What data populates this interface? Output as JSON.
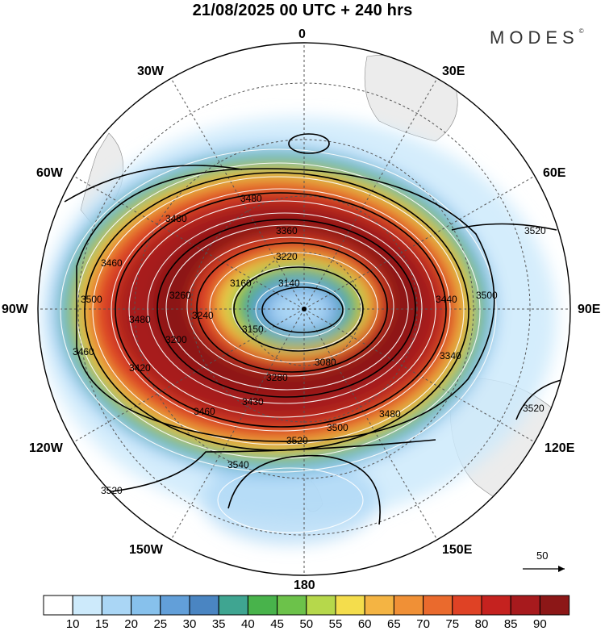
{
  "title": "21/08/2025  00 UTC  + 240 hrs",
  "brand": "MODES",
  "brand_mark": "©",
  "longitude_labels": {
    "n0": "0",
    "n30w": "30W",
    "n30e": "30E",
    "n60w": "60W",
    "n60e": "60E",
    "n90w": "90W",
    "n90e": "90E",
    "n120w": "120W",
    "n120e": "120E",
    "n150w": "150W",
    "n150e": "150E",
    "n180": "180"
  },
  "contour_labels": [
    "3480",
    "3480",
    "3460",
    "3460",
    "3500",
    "3480",
    "3360",
    "3220",
    "3160",
    "3140",
    "3240",
    "3260",
    "3200",
    "3280",
    "3080",
    "3150",
    "3420",
    "3340",
    "3460",
    "3480",
    "3500",
    "3520",
    "3500",
    "3520",
    "3540",
    "3520",
    "3520",
    "3430",
    "3440"
  ],
  "reference_vector": {
    "label": "50"
  },
  "colorbar": {
    "levels": [
      "10",
      "15",
      "20",
      "25",
      "30",
      "35",
      "40",
      "45",
      "50",
      "55",
      "60",
      "65",
      "70",
      "75",
      "80",
      "85",
      "90"
    ],
    "colors": [
      "#ffffff",
      "#cdeafb",
      "#aad6f5",
      "#87c1ec",
      "#629fd9",
      "#4a85c2",
      "#3fa591",
      "#48b34b",
      "#6cc24a",
      "#b6d84b",
      "#f4dd4c",
      "#f4b443",
      "#f09036",
      "#ea6a2d",
      "#df4225",
      "#c5221f",
      "#a71a1d",
      "#8c1717"
    ]
  },
  "colors": {
    "ocean_land": "#f2f2f2",
    "grid": "#555555"
  }
}
